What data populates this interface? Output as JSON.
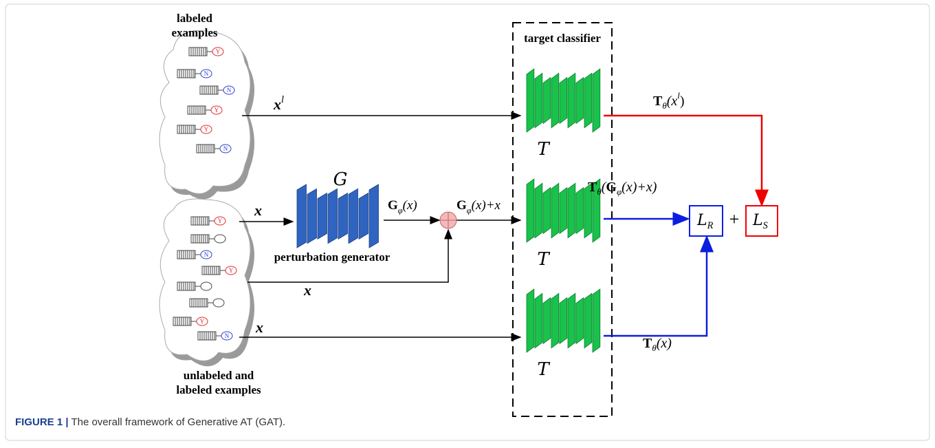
{
  "labeled_cloud": {
    "label": [
      "labeled",
      "examples"
    ],
    "items": [
      {
        "label": "Y",
        "color": "#e0282c"
      },
      {
        "label": "N",
        "color": "#2a3ccf"
      },
      {
        "label": "N",
        "color": "#2a3ccf"
      },
      {
        "label": "Y",
        "color": "#e0282c"
      },
      {
        "label": "Y",
        "color": "#e0282c"
      },
      {
        "label": "N",
        "color": "#2a3ccf"
      }
    ]
  },
  "unlabeled_cloud": {
    "label": [
      "unlabeled and",
      "labeled examples"
    ],
    "items": [
      {
        "label": "Y",
        "color": "#e0282c"
      },
      {
        "label": "N",
        "color": "#2a3ccf"
      },
      {
        "label": "Y",
        "color": "#e0282c"
      },
      {
        "label": "Y",
        "color": "#e0282c"
      },
      {
        "label": "N",
        "color": "#2a3ccf"
      }
    ]
  },
  "inputs": {
    "labeled": [
      {
        "text": "x",
        "italic": true,
        "bold": true
      },
      {
        "text": "l",
        "sup": true,
        "italic": true
      }
    ],
    "generator_input": [
      {
        "text": "x",
        "italic": true,
        "bold": true
      }
    ],
    "skip_input": [
      {
        "text": "x",
        "italic": true,
        "bold": true
      }
    ],
    "direct_input": [
      {
        "text": "x",
        "italic": true,
        "bold": true
      }
    ]
  },
  "generator": {
    "symbol": [
      {
        "text": "G",
        "cal": true
      }
    ],
    "name": "perturbation generator",
    "output": [
      {
        "text": "G",
        "bold": true
      },
      {
        "text": "φ",
        "sub": true,
        "italic": true
      },
      {
        "text": "(x)",
        "italic": true
      }
    ],
    "sum": [
      {
        "text": "G",
        "bold": true
      },
      {
        "text": "φ",
        "sub": true,
        "italic": true
      },
      {
        "text": "(x)+x",
        "italic": true
      }
    ]
  },
  "classifier": {
    "title": "target classifier",
    "symbols": [
      [
        {
          "text": "T",
          "cal": true
        }
      ],
      [
        {
          "text": "T",
          "cal": true
        }
      ],
      [
        {
          "text": "T",
          "cal": true
        }
      ]
    ],
    "outputs": [
      [
        {
          "text": "T",
          "bold": true
        },
        {
          "text": "θ",
          "sub": true,
          "italic": true
        },
        {
          "text": "(x",
          "italic": true
        },
        {
          "text": "l",
          "sup": true,
          "italic": true
        },
        {
          "text": ")"
        }
      ],
      [
        {
          "text": "T",
          "bold": true
        },
        {
          "text": "θ",
          "sub": true,
          "italic": true
        },
        {
          "text": "(",
          "italic": true
        },
        {
          "text": "G",
          "bold": true
        },
        {
          "text": "φ",
          "sub": true,
          "italic": true
        },
        {
          "text": "(x)+x)",
          "italic": true
        }
      ],
      [
        {
          "text": "T",
          "bold": true
        },
        {
          "text": "θ",
          "sub": true,
          "italic": true
        },
        {
          "text": "(x)",
          "italic": true
        }
      ]
    ]
  },
  "losses": {
    "regularization": [
      {
        "text": "L",
        "cal": true
      },
      {
        "text": "R",
        "sub": true,
        "italic": true
      }
    ],
    "plus": "+",
    "supervised": [
      {
        "text": "L",
        "cal": true
      },
      {
        "text": "S",
        "sub": true,
        "italic": true
      }
    ]
  },
  "caption": {
    "label": "FIGURE 1 |",
    "text": "The overall framework of Generative AT (GAT)."
  }
}
